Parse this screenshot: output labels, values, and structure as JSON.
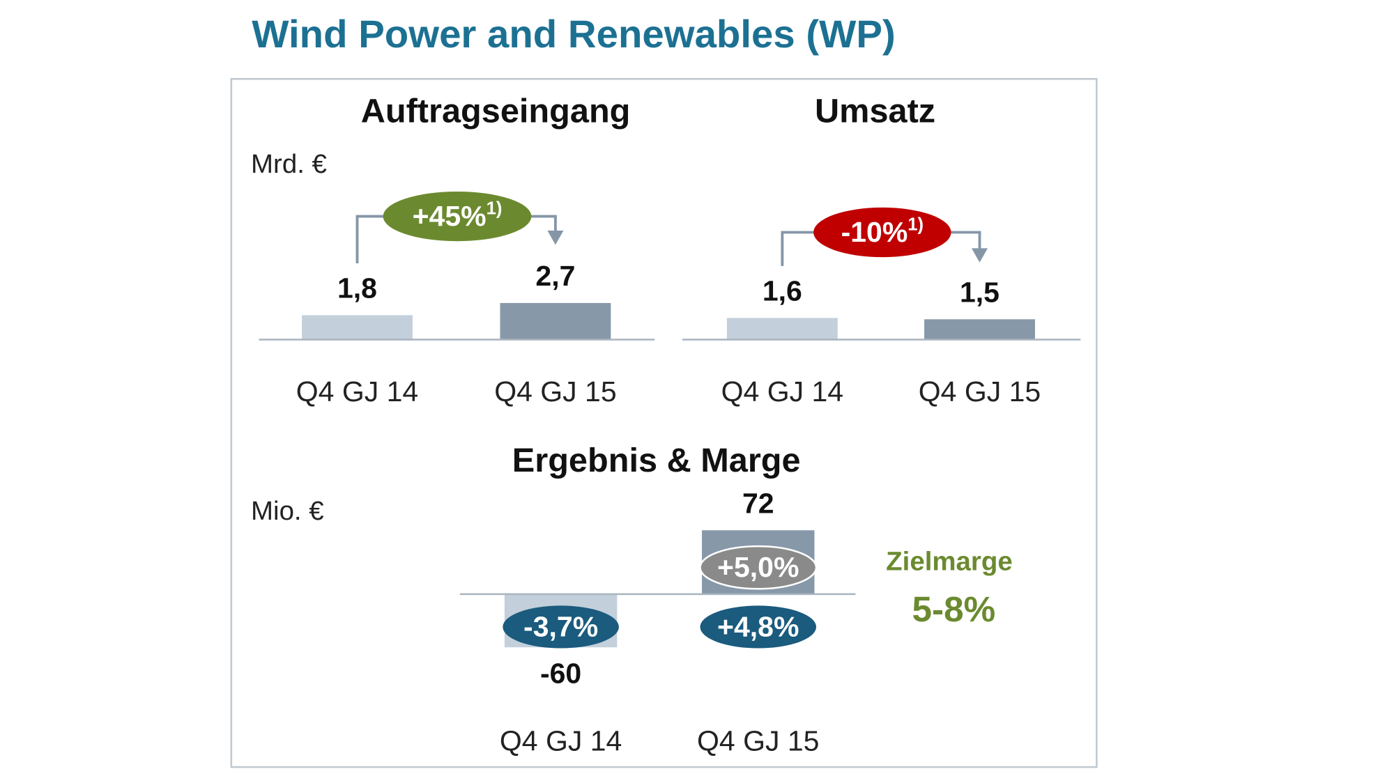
{
  "title": "Wind Power and Renewables (WP)",
  "chart_data": [
    {
      "type": "bar",
      "title": "Auftragseingang",
      "unit": "Mrd. €",
      "categories": [
        "Q4 GJ 14",
        "Q4 GJ 15"
      ],
      "values": [
        1.8,
        2.7
      ],
      "value_labels": [
        "1,8",
        "2,7"
      ],
      "colors": [
        "#c3cfdb",
        "#8798a9"
      ],
      "change": {
        "value": 45,
        "label": "+45%",
        "footnote": "1)",
        "color": "#6b8a2f"
      }
    },
    {
      "type": "bar",
      "title": "Umsatz",
      "categories": [
        "Q4 GJ 14",
        "Q4 GJ 15"
      ],
      "values": [
        1.6,
        1.5
      ],
      "value_labels": [
        "1,6",
        "1,5"
      ],
      "colors": [
        "#c3cfdb",
        "#8798a9"
      ],
      "change": {
        "value": -10,
        "label": "-10%",
        "footnote": "1)",
        "color": "#c00000"
      }
    },
    {
      "type": "bar",
      "title": "Ergebnis & Marge",
      "unit": "Mio. €",
      "categories": [
        "Q4 GJ 14",
        "Q4 GJ 15"
      ],
      "values": [
        -60,
        72
      ],
      "colors": [
        "#c3cfdb",
        "#8798a9"
      ],
      "margin": {
        "values": [
          -3.7,
          4.8
        ],
        "value_labels": [
          "-3,7%",
          "+4,8%"
        ],
        "color": "#1a5b7e"
      },
      "margin_adjusted": {
        "values": [
          null,
          5.0
        ],
        "value_labels": [
          null,
          "+5,0%"
        ],
        "color": "#8a8a8a"
      },
      "target": {
        "label": "Zielmarge",
        "range": "5-8%",
        "color": "#6b8a2f"
      }
    }
  ]
}
